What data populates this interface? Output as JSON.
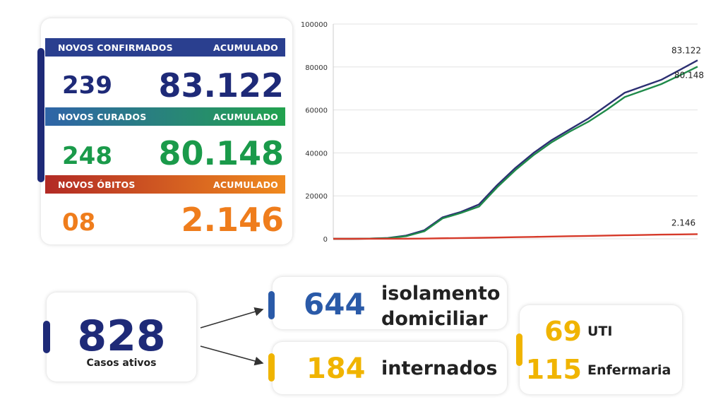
{
  "summary": {
    "confirmed": {
      "new_label": "NOVOS CONFIRMADOS",
      "acc_label": "ACUMULADO",
      "new_value": "239",
      "acc_value": "83.122",
      "color": "#1e2a78"
    },
    "recovered": {
      "new_label": "NOVOS CURADOS",
      "acc_label": "ACUMULADO",
      "new_value": "248",
      "acc_value": "80.148",
      "color": "#1a9a4a"
    },
    "deaths": {
      "new_label": "NOVOS ÓBITOS",
      "acc_label": "ACUMULADO",
      "new_value": "08",
      "acc_value": "2.146",
      "color": "#ef7d1c"
    }
  },
  "active": {
    "value": "828",
    "label": "Casos ativos"
  },
  "isolation": {
    "value": "644",
    "label_line1": "isolamento",
    "label_line2": "domiciliar"
  },
  "hospitalized": {
    "value": "184",
    "label": "internados"
  },
  "hospital_breakdown": {
    "uti": {
      "value": "69",
      "label": "UTI"
    },
    "ward": {
      "value": "115",
      "label": "Enfermaria"
    }
  },
  "chart_data": {
    "type": "line",
    "title": "",
    "xlabel": "",
    "ylabel": "",
    "ylim": [
      0,
      100000
    ],
    "yticks": [
      "0",
      "20000",
      "40000",
      "60000",
      "80000",
      "100000"
    ],
    "grid": true,
    "x": [
      0,
      5,
      10,
      15,
      20,
      25,
      30,
      35,
      40,
      45,
      50,
      55,
      60,
      65,
      70,
      75,
      80,
      85,
      90,
      95,
      100
    ],
    "series": [
      {
        "values": [
          0,
          0,
          100,
          400,
          1500,
          4000,
          10000,
          12500,
          16000,
          25000,
          33000,
          40000,
          46000,
          51000,
          56000,
          62000,
          68000,
          71000,
          74000,
          78500,
          83122
        ],
        "color": "#2c2f72",
        "end_label": "83.122"
      },
      {
        "values": [
          0,
          0,
          80,
          300,
          1200,
          3500,
          9500,
          12000,
          15000,
          24000,
          32000,
          39000,
          45000,
          50000,
          54500,
          60000,
          66000,
          69000,
          72000,
          76000,
          80148
        ],
        "color": "#1f8a4a",
        "end_label": "80.148"
      },
      {
        "values": [
          0,
          0,
          5,
          15,
          40,
          100,
          250,
          350,
          450,
          600,
          750,
          900,
          1050,
          1200,
          1350,
          1500,
          1650,
          1800,
          1950,
          2050,
          2146
        ],
        "color": "#d63a2a",
        "end_label": "2.146"
      }
    ]
  }
}
